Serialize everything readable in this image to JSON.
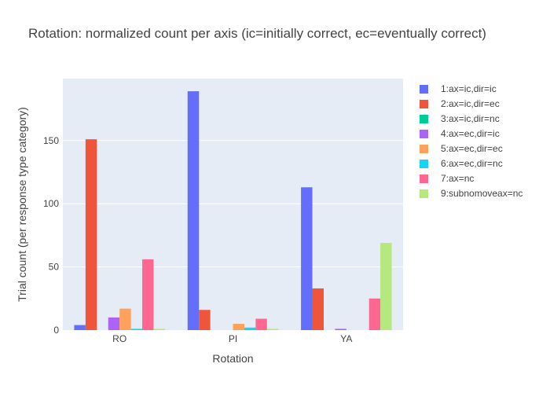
{
  "chart_data": {
    "type": "bar",
    "title": "Rotation: normalized count per axis (ic=initially correct, ec=eventually correct)",
    "xlabel": "Rotation",
    "ylabel": "Trial count (per response type category)",
    "categories": [
      "RO",
      "PI",
      "YA"
    ],
    "ylim": [
      0,
      199
    ],
    "yticks": [
      0,
      50,
      100,
      150
    ],
    "grid": true,
    "legend_position": "right",
    "series": [
      {
        "name": "1:ax=ic,dir=ic",
        "color": "#636efa",
        "values": [
          4,
          189,
          113
        ]
      },
      {
        "name": "2:ax=ic,dir=ec",
        "color": "#EF553B",
        "values": [
          151,
          16,
          33
        ]
      },
      {
        "name": "3:ax=ic,dir=nc",
        "color": "#00cc96",
        "values": [
          0,
          0,
          0
        ]
      },
      {
        "name": "4:ax=ec,dir=ic",
        "color": "#ab63fa",
        "values": [
          10,
          0,
          1
        ]
      },
      {
        "name": "5:ax=ec,dir=ec",
        "color": "#FFA15A",
        "values": [
          17,
          5,
          0
        ]
      },
      {
        "name": "6:ax=ec,dir=nc",
        "color": "#19d3f3",
        "values": [
          1,
          2,
          0
        ]
      },
      {
        "name": "7:ax=nc",
        "color": "#FF6692",
        "values": [
          56,
          9,
          25
        ]
      },
      {
        "name": "9:subnomoveax=nc",
        "color": "#B6E880",
        "values": [
          1,
          1,
          69
        ]
      }
    ]
  }
}
